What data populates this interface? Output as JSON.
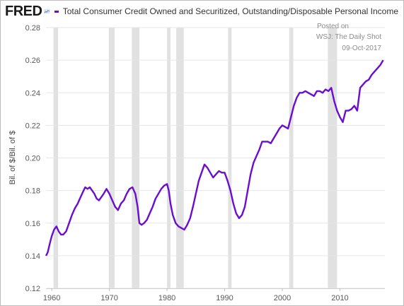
{
  "header": {
    "logo_text": "FRED",
    "logo_icon": "fred-line-chart-icon"
  },
  "chart_data": {
    "type": "line",
    "title": "",
    "xlabel": "",
    "ylabel": "Bil. of $/Bil. of $",
    "xlim": [
      1959.0,
      2017.8
    ],
    "ylim": [
      0.12,
      0.28
    ],
    "x_ticks": [
      1960,
      1970,
      1980,
      1990,
      2000,
      2010
    ],
    "x_tick_labels": [
      "1960",
      "1970",
      "1980",
      "1990",
      "2000",
      "2010"
    ],
    "y_ticks": [
      0.12,
      0.14,
      0.16,
      0.18,
      0.2,
      0.22,
      0.24,
      0.26,
      0.28
    ],
    "y_tick_labels": [
      "0.12",
      "0.14",
      "0.16",
      "0.18",
      "0.20",
      "0.22",
      "0.24",
      "0.26",
      "0.28"
    ],
    "grid": {
      "horizontal": true,
      "vertical": false,
      "color": "#e6e6e6"
    },
    "legend_position": "top",
    "recession_color": "#e1e1e1",
    "recessions": [
      [
        1960.3,
        1961.1
      ],
      [
        1969.9,
        1970.9
      ],
      [
        1973.9,
        1975.2
      ],
      [
        1980.0,
        1980.6
      ],
      [
        1981.6,
        1982.9
      ],
      [
        1990.6,
        1991.2
      ],
      [
        2001.2,
        2001.9
      ],
      [
        2007.9,
        2009.5
      ]
    ],
    "annotations": [
      "Posted on",
      "WSJ: The Daily Shot",
      "09-Oct-2017"
    ],
    "series": [
      {
        "name": "Total Consumer Credit Owned and Securitized, Outstanding/Disposable Personal Income",
        "color": "#6a0dcf",
        "x": [
          1959.0,
          1959.3,
          1959.7,
          1960.0,
          1960.4,
          1960.8,
          1961.2,
          1961.6,
          1962.0,
          1962.5,
          1963.0,
          1963.5,
          1964.0,
          1964.5,
          1965.0,
          1965.4,
          1965.8,
          1966.2,
          1966.6,
          1967.0,
          1967.4,
          1967.8,
          1968.2,
          1968.6,
          1969.0,
          1969.5,
          1970.0,
          1970.5,
          1971.0,
          1971.5,
          1972.0,
          1972.5,
          1973.0,
          1973.5,
          1974.0,
          1974.5,
          1974.9,
          1975.2,
          1975.6,
          1976.0,
          1976.5,
          1977.0,
          1977.5,
          1978.0,
          1978.5,
          1979.0,
          1979.5,
          1980.0,
          1980.3,
          1980.6,
          1981.0,
          1981.5,
          1982.0,
          1982.5,
          1983.0,
          1983.5,
          1984.0,
          1984.5,
          1985.0,
          1985.5,
          1986.0,
          1986.5,
          1987.0,
          1987.5,
          1988.0,
          1988.5,
          1989.0,
          1989.5,
          1990.0,
          1990.5,
          1991.0,
          1991.5,
          1992.0,
          1992.5,
          1993.0,
          1993.5,
          1994.0,
          1994.5,
          1995.0,
          1995.5,
          1996.0,
          1996.5,
          1997.0,
          1997.5,
          1998.0,
          1998.5,
          1999.0,
          1999.5,
          2000.0,
          2000.5,
          2001.0,
          2001.5,
          2002.0,
          2002.5,
          2003.0,
          2003.5,
          2004.0,
          2004.5,
          2005.0,
          2005.5,
          2006.0,
          2006.5,
          2007.0,
          2007.5,
          2008.0,
          2008.5,
          2009.0,
          2009.5,
          2010.0,
          2010.5,
          2011.0,
          2011.5,
          2012.0,
          2012.5,
          2013.0,
          2013.5,
          2014.0,
          2014.5,
          2015.0,
          2015.5,
          2016.0,
          2016.5,
          2017.0,
          2017.5
        ],
        "values": [
          0.14,
          0.142,
          0.148,
          0.152,
          0.156,
          0.158,
          0.155,
          0.153,
          0.153,
          0.155,
          0.16,
          0.165,
          0.169,
          0.172,
          0.176,
          0.179,
          0.182,
          0.181,
          0.182,
          0.18,
          0.178,
          0.175,
          0.174,
          0.176,
          0.178,
          0.181,
          0.178,
          0.174,
          0.17,
          0.168,
          0.172,
          0.174,
          0.178,
          0.181,
          0.182,
          0.178,
          0.17,
          0.16,
          0.159,
          0.16,
          0.162,
          0.166,
          0.17,
          0.175,
          0.178,
          0.181,
          0.183,
          0.184,
          0.18,
          0.172,
          0.165,
          0.16,
          0.158,
          0.157,
          0.156,
          0.159,
          0.163,
          0.17,
          0.178,
          0.186,
          0.191,
          0.196,
          0.194,
          0.191,
          0.188,
          0.19,
          0.192,
          0.191,
          0.191,
          0.186,
          0.18,
          0.172,
          0.166,
          0.163,
          0.165,
          0.17,
          0.18,
          0.19,
          0.197,
          0.201,
          0.205,
          0.21,
          0.21,
          0.21,
          0.209,
          0.212,
          0.215,
          0.218,
          0.22,
          0.219,
          0.218,
          0.225,
          0.232,
          0.237,
          0.24,
          0.24,
          0.241,
          0.24,
          0.239,
          0.238,
          0.241,
          0.241,
          0.24,
          0.242,
          0.241,
          0.243,
          0.235,
          0.229,
          0.225,
          0.222,
          0.229,
          0.229,
          0.23,
          0.232,
          0.229,
          0.243,
          0.245,
          0.247,
          0.248,
          0.251,
          0.253,
          0.255,
          0.257,
          0.26
        ]
      }
    ]
  }
}
